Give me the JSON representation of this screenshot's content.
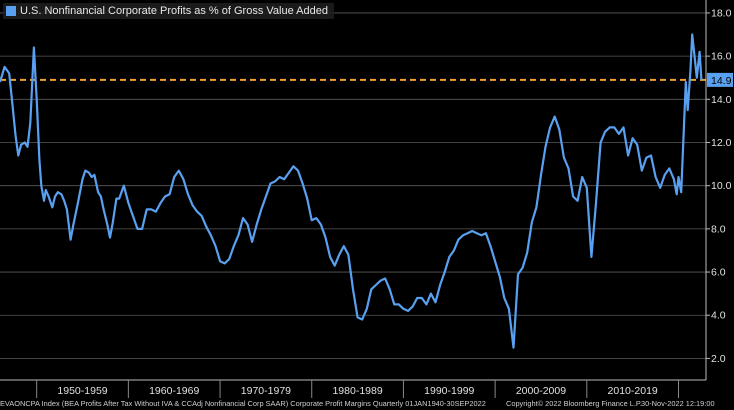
{
  "chart_data": {
    "type": "line",
    "ylim": [
      1.0,
      18.6
    ],
    "xlim": [
      1946.0,
      2023.0
    ],
    "y_ticks": [
      "2.0",
      "4.0",
      "6.0",
      "8.0",
      "10.0",
      "12.0",
      "14.0",
      "16.0",
      "18.0"
    ],
    "y_tick_values": [
      2,
      4,
      6,
      8,
      10,
      12,
      14,
      16,
      18
    ],
    "x_ticks": [
      "1950-1959",
      "1960-1969",
      "1970-1979",
      "1980-1989",
      "1990-1999",
      "2000-2009",
      "2010-2019"
    ],
    "x_tick_ranges": [
      [
        1950,
        1960
      ],
      [
        1960,
        1970
      ],
      [
        1970,
        1980
      ],
      [
        1980,
        1990
      ],
      [
        1990,
        2000
      ],
      [
        2000,
        2010
      ],
      [
        2010,
        2020
      ]
    ],
    "grid": true,
    "series": [
      {
        "name": "U.S. Nonfinancial Corporate Profits as % of Gross Value Added",
        "color": "#5aa0f0",
        "last_value_label": "14.9",
        "x": [
          1946.0,
          1946.5,
          1947.0,
          1947.3,
          1947.7,
          1948.0,
          1948.3,
          1948.7,
          1949.0,
          1949.3,
          1949.7,
          1950.0,
          1950.3,
          1950.5,
          1950.8,
          1951.0,
          1951.3,
          1951.7,
          1952.0,
          1952.3,
          1952.7,
          1953.0,
          1953.3,
          1953.7,
          1954.0,
          1954.5,
          1955.0,
          1955.3,
          1955.7,
          1956.0,
          1956.3,
          1956.7,
          1957.0,
          1957.3,
          1957.7,
          1958.0,
          1958.3,
          1958.7,
          1959.0,
          1959.5,
          1960.0,
          1960.5,
          1961.0,
          1961.5,
          1962.0,
          1962.5,
          1963.0,
          1963.5,
          1964.0,
          1964.5,
          1965.0,
          1965.5,
          1966.0,
          1966.5,
          1967.0,
          1967.5,
          1968.0,
          1968.5,
          1969.0,
          1969.5,
          1970.0,
          1970.5,
          1971.0,
          1971.5,
          1972.0,
          1972.5,
          1973.0,
          1973.5,
          1974.0,
          1974.5,
          1975.0,
          1975.5,
          1976.0,
          1976.5,
          1977.0,
          1977.5,
          1978.0,
          1978.5,
          1979.0,
          1979.5,
          1980.0,
          1980.5,
          1981.0,
          1981.5,
          1982.0,
          1982.5,
          1983.0,
          1983.5,
          1984.0,
          1984.5,
          1985.0,
          1985.5,
          1986.0,
          1986.5,
          1987.0,
          1987.5,
          1988.0,
          1988.5,
          1989.0,
          1989.5,
          1990.0,
          1990.5,
          1991.0,
          1991.5,
          1992.0,
          1992.5,
          1993.0,
          1993.5,
          1994.0,
          1994.5,
          1995.0,
          1995.5,
          1996.0,
          1996.5,
          1997.0,
          1997.5,
          1998.0,
          1998.5,
          1999.0,
          1999.5,
          2000.0,
          2000.5,
          2001.0,
          2001.5,
          2002.0,
          2002.5,
          2003.0,
          2003.5,
          2004.0,
          2004.5,
          2005.0,
          2005.5,
          2006.0,
          2006.5,
          2007.0,
          2007.5,
          2008.0,
          2008.5,
          2009.0,
          2009.5,
          2010.0,
          2010.5,
          2011.0,
          2011.5,
          2012.0,
          2012.5,
          2013.0,
          2013.5,
          2014.0,
          2014.5,
          2015.0,
          2015.5,
          2016.0,
          2016.5,
          2017.0,
          2017.5,
          2018.0,
          2018.5,
          2019.0,
          2019.5,
          2019.8,
          2020.0,
          2020.3,
          2020.5,
          2020.8,
          2021.0,
          2021.3,
          2021.5,
          2021.8,
          2022.0,
          2022.3,
          2022.5
        ],
        "y": [
          14.8,
          15.5,
          15.2,
          14.0,
          12.3,
          11.4,
          11.9,
          12.0,
          11.8,
          12.9,
          16.4,
          14.0,
          11.2,
          10.0,
          9.3,
          9.8,
          9.5,
          9.0,
          9.5,
          9.7,
          9.6,
          9.3,
          8.9,
          7.5,
          8.2,
          9.2,
          10.3,
          10.7,
          10.6,
          10.4,
          10.5,
          9.7,
          9.5,
          8.9,
          8.2,
          7.6,
          8.3,
          9.4,
          9.4,
          10.0,
          9.2,
          8.6,
          8.0,
          8.0,
          8.9,
          8.9,
          8.8,
          9.2,
          9.5,
          9.6,
          10.4,
          10.7,
          10.3,
          9.6,
          9.1,
          8.8,
          8.6,
          8.1,
          7.7,
          7.2,
          6.5,
          6.4,
          6.6,
          7.2,
          7.7,
          8.5,
          8.2,
          7.4,
          8.2,
          8.9,
          9.5,
          10.1,
          10.2,
          10.4,
          10.3,
          10.6,
          10.9,
          10.7,
          10.1,
          9.4,
          8.4,
          8.5,
          8.2,
          7.6,
          6.7,
          6.3,
          6.8,
          7.2,
          6.8,
          5.2,
          3.9,
          3.8,
          4.3,
          5.2,
          5.4,
          5.6,
          5.7,
          5.2,
          4.5,
          4.5,
          4.3,
          4.2,
          4.4,
          4.8,
          4.8,
          4.5,
          5.0,
          4.6,
          5.4,
          6.0,
          6.7,
          7.0,
          7.5,
          7.7,
          7.8,
          7.9,
          7.8,
          7.7,
          7.8,
          7.2,
          6.5,
          5.8,
          4.8,
          4.3,
          2.5,
          5.9,
          6.2,
          6.9,
          8.3,
          9.0,
          10.5,
          11.8,
          12.7,
          13.2,
          12.6,
          11.3,
          10.8,
          9.5,
          9.3,
          10.4,
          9.9,
          6.7,
          9.2,
          12.0,
          12.5,
          12.7,
          12.7,
          12.4,
          12.7,
          11.4,
          12.2,
          11.9,
          10.7,
          11.3,
          11.4,
          10.4,
          9.9,
          10.5,
          10.8,
          10.3,
          9.6,
          10.4,
          9.7,
          11.8,
          14.8,
          13.5,
          15.3,
          17.0,
          15.8,
          15.0,
          16.2,
          14.9
        ]
      }
    ],
    "reference_line": {
      "value": 14.9,
      "color": "#f0a030",
      "style": "dashed"
    }
  },
  "footer": {
    "source": "EVAONCPA Index (BEA Profits After Tax Without IVA & CCAdj Nonfinancial Corp SAAR) Corporate Profit Margins  Quarterly 01JAN1940-30SEP2022",
    "copyright": "Copyright© 2022 Bloomberg Finance L.P.",
    "timestamp": "30-Nov-2022 12:19:00"
  },
  "colors": {
    "background": "#000000",
    "grid": "#5a5a5a",
    "line": "#5aa0f0",
    "reference": "#f0a030",
    "axis_text": "#e0e0e0"
  }
}
